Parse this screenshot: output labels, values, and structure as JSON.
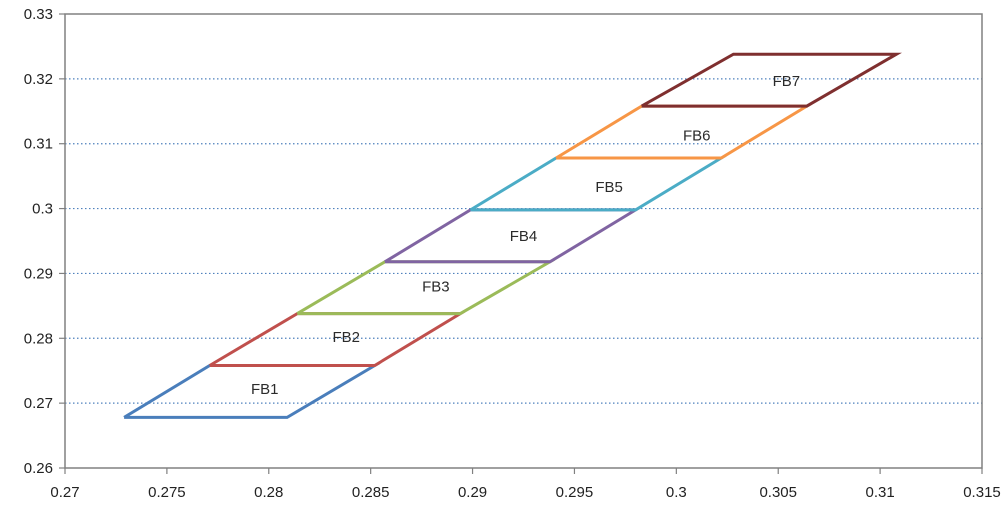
{
  "chart_data": {
    "type": "line",
    "title": "",
    "xlabel": "",
    "ylabel": "",
    "xlim": [
      0.27,
      0.315
    ],
    "ylim": [
      0.26,
      0.33
    ],
    "x_ticks": [
      "0.27",
      "0.275",
      "0.28",
      "0.285",
      "0.29",
      "0.295",
      "0.3",
      "0.305",
      "0.31",
      "0.315"
    ],
    "y_ticks": [
      "0.26",
      "0.27",
      "0.28",
      "0.29",
      "0.3",
      "0.31",
      "0.32",
      "0.33"
    ],
    "grid": "horizontal dotted",
    "legend": "none",
    "series": [
      {
        "name": "FB1",
        "color": "#4a7ebb",
        "label_at": [
          0.2798,
          0.2722
        ],
        "points": [
          [
            0.2729,
            0.2678
          ],
          [
            0.2809,
            0.2678
          ],
          [
            0.2852,
            0.2758
          ],
          [
            0.2771,
            0.2758
          ],
          [
            0.2729,
            0.2678
          ]
        ]
      },
      {
        "name": "FB2",
        "color": "#c0504d",
        "label_at": [
          0.2838,
          0.2802
        ],
        "points": [
          [
            0.2771,
            0.2758
          ],
          [
            0.2852,
            0.2758
          ],
          [
            0.2894,
            0.2838
          ],
          [
            0.2814,
            0.2838
          ],
          [
            0.2771,
            0.2758
          ]
        ]
      },
      {
        "name": "FB3",
        "color": "#9bbb59",
        "label_at": [
          0.2882,
          0.288
        ],
        "points": [
          [
            0.2814,
            0.2838
          ],
          [
            0.2894,
            0.2838
          ],
          [
            0.2938,
            0.2918
          ],
          [
            0.2857,
            0.2918
          ],
          [
            0.2814,
            0.2838
          ]
        ]
      },
      {
        "name": "FB4",
        "color": "#8064a2",
        "label_at": [
          0.2925,
          0.2958
        ],
        "points": [
          [
            0.2857,
            0.2918
          ],
          [
            0.2938,
            0.2918
          ],
          [
            0.298,
            0.2998
          ],
          [
            0.2899,
            0.2998
          ],
          [
            0.2857,
            0.2918
          ]
        ]
      },
      {
        "name": "FB5",
        "color": "#4bacc6",
        "label_at": [
          0.2967,
          0.3033
        ],
        "points": [
          [
            0.2899,
            0.2998
          ],
          [
            0.298,
            0.2998
          ],
          [
            0.3022,
            0.3078
          ],
          [
            0.2941,
            0.3078
          ],
          [
            0.2899,
            0.2998
          ]
        ]
      },
      {
        "name": "FB6",
        "color": "#f79646",
        "label_at": [
          0.301,
          0.3113
        ],
        "points": [
          [
            0.2941,
            0.3078
          ],
          [
            0.3022,
            0.3078
          ],
          [
            0.3064,
            0.3158
          ],
          [
            0.2983,
            0.3158
          ],
          [
            0.2941,
            0.3078
          ]
        ]
      },
      {
        "name": "FB7",
        "color": "#7f2f2f",
        "label_at": [
          0.3054,
          0.3197
        ],
        "points": [
          [
            0.2983,
            0.3158
          ],
          [
            0.3064,
            0.3158
          ],
          [
            0.3108,
            0.3238
          ],
          [
            0.3028,
            0.3238
          ],
          [
            0.2983,
            0.3158
          ]
        ]
      }
    ]
  },
  "colors": {
    "axis": "#808080",
    "grid": "#4f81bd",
    "text": "#222222"
  }
}
